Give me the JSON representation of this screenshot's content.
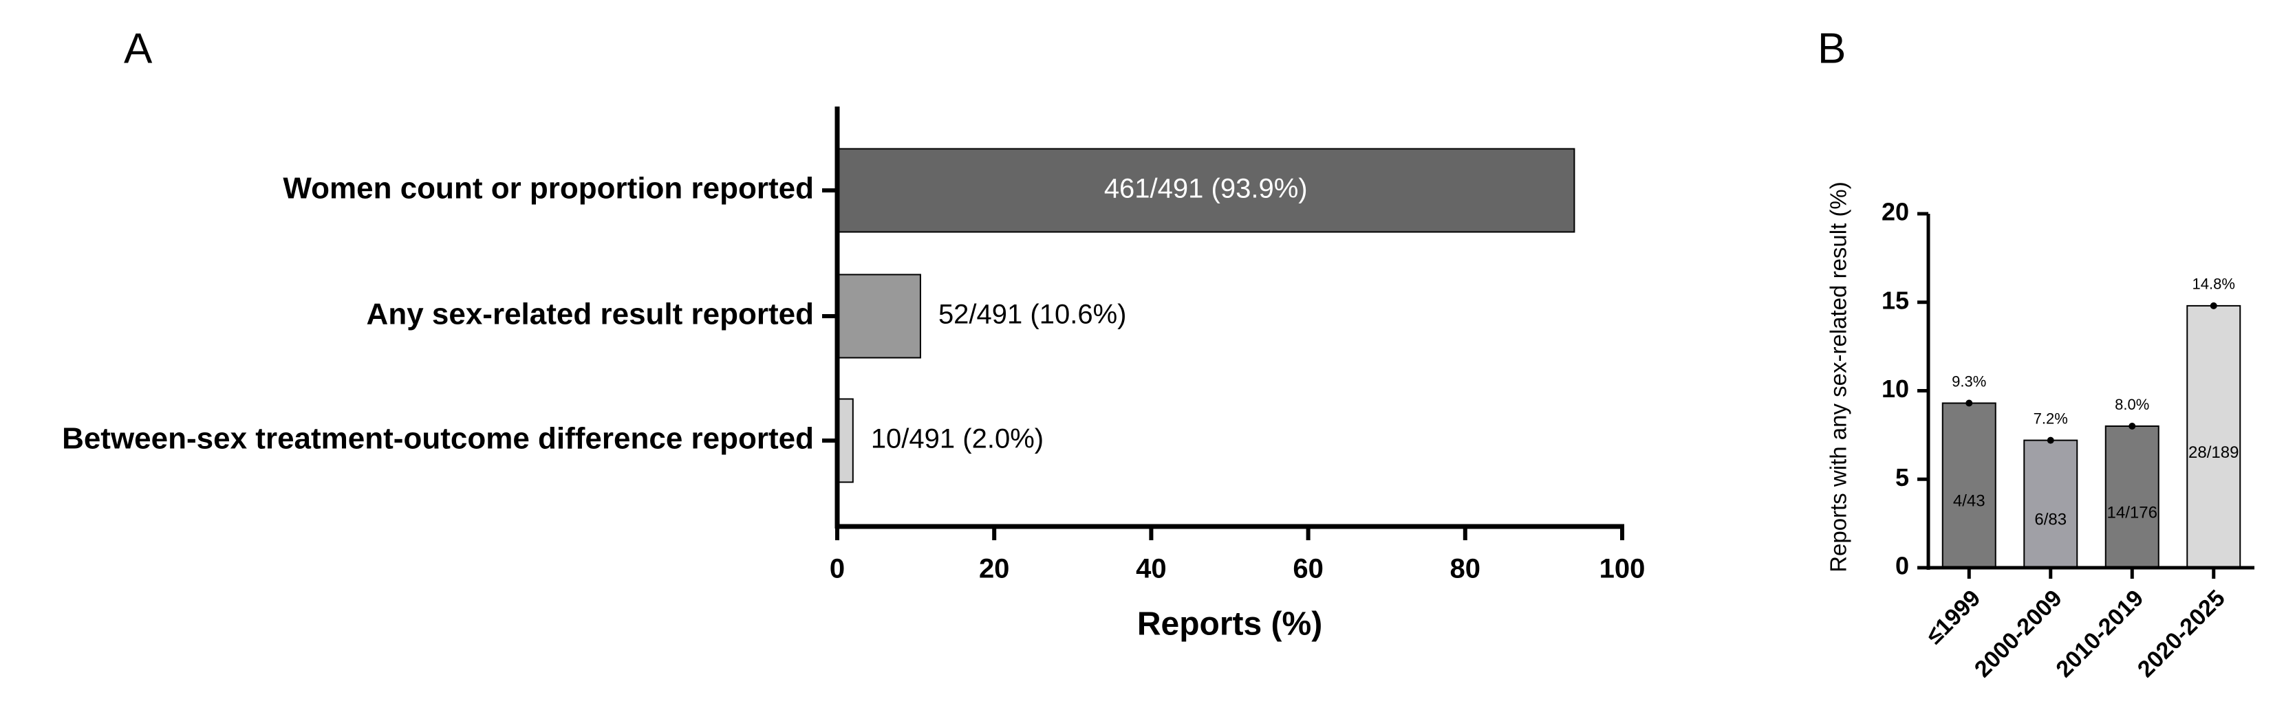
{
  "chart_data": [
    {
      "type": "hbar",
      "panel": "A",
      "categories": [
        "Women count or proportion reported",
        "Any sex-related result reported",
        "Between-sex treatment-outcome difference reported"
      ],
      "values": [
        93.9,
        10.6,
        2.0
      ],
      "value_labels": [
        "461/491 (93.9%)",
        "52/491 (10.6%)",
        "10/491 (2.0%)"
      ],
      "colors": [
        "#666666",
        "#999999",
        "#d3d3d3"
      ],
      "xlabel": "Reports (%)",
      "xlim": [
        0,
        100
      ],
      "xticks": [
        0,
        20,
        40,
        60,
        80,
        100
      ]
    },
    {
      "type": "bar",
      "panel": "B",
      "categories": [
        "≤1999",
        "2000-2009",
        "2010-2019",
        "2020-2025"
      ],
      "values": [
        9.3,
        7.2,
        8.0,
        14.8
      ],
      "value_labels": [
        "9.3%",
        "7.2%",
        "8.0%",
        "14.8%"
      ],
      "counts": [
        "4/43",
        "6/83",
        "14/176",
        "28/189"
      ],
      "colors": [
        "#7a7a7a",
        "#a0a0a6",
        "#7a7a7a",
        "#d9d9d9"
      ],
      "ylabel": "Reports with any sex-related result (%)",
      "ylim": [
        0,
        20
      ],
      "yticks": [
        0,
        5,
        10,
        15,
        20
      ]
    }
  ]
}
